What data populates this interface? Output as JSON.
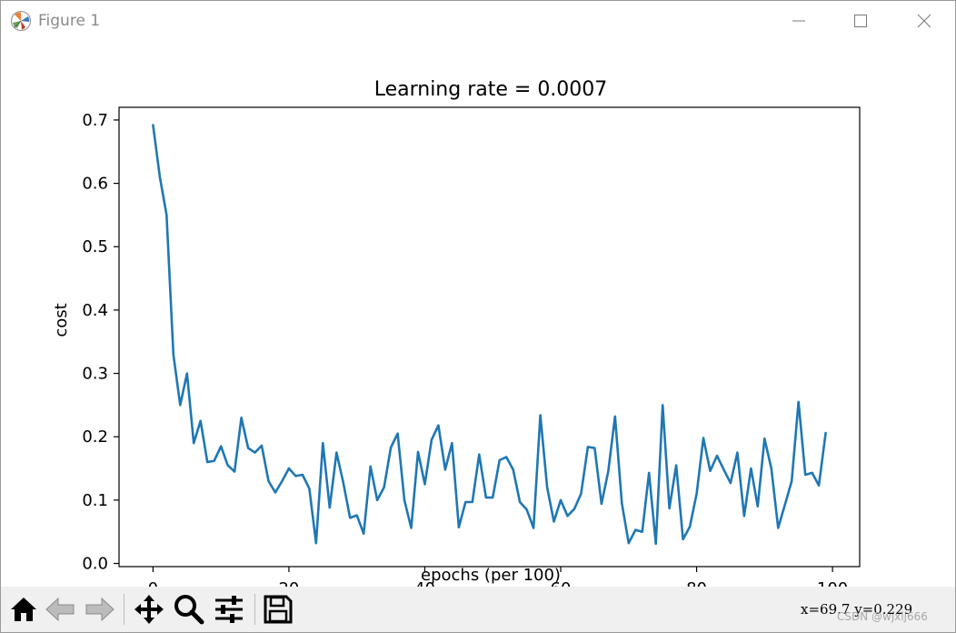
{
  "window": {
    "title": "Figure 1",
    "app_icon": "matplotlib-icon",
    "controls": [
      "minimize-icon",
      "maximize-icon",
      "close-icon"
    ]
  },
  "chart_data": {
    "type": "line",
    "title": "Learning rate = 0.0007",
    "xlabel": "epochs (per 100)",
    "ylabel": "cost",
    "xlim": [
      -5,
      104
    ],
    "ylim": [
      -0.005,
      0.72
    ],
    "xticks": [
      0,
      20,
      40,
      60,
      80,
      100
    ],
    "xtick_labels": [
      "0",
      "20",
      "40",
      "60",
      "80",
      "100"
    ],
    "yticks": [
      0.0,
      0.1,
      0.2,
      0.3,
      0.4,
      0.5,
      0.6,
      0.7
    ],
    "ytick_labels": [
      "0.0",
      "0.1",
      "0.2",
      "0.3",
      "0.4",
      "0.5",
      "0.6",
      "0.7"
    ],
    "grid": false,
    "line_color": "#1f77b4",
    "series": [
      {
        "x": [
          0,
          1,
          2,
          3,
          4,
          5,
          6,
          7,
          8,
          9,
          10,
          11,
          12,
          13,
          14,
          15,
          16,
          17,
          18,
          19,
          20,
          21,
          22,
          23,
          24,
          25,
          26,
          27,
          28,
          29,
          30,
          31,
          32,
          33,
          34,
          35,
          36,
          37,
          38,
          39,
          40,
          41,
          42,
          43,
          44,
          45,
          46,
          47,
          48,
          49,
          50,
          51,
          52,
          53,
          54,
          55,
          56,
          57,
          58,
          59,
          60,
          61,
          62,
          63,
          64,
          65,
          66,
          67,
          68,
          69,
          70,
          71,
          72,
          73,
          74,
          75,
          76,
          77,
          78,
          79,
          80,
          81,
          82,
          83,
          84,
          85,
          86,
          87,
          88,
          89,
          90,
          91,
          92,
          93,
          94,
          95,
          96,
          97,
          98,
          99
        ],
        "values": [
          0.692,
          0.61,
          0.55,
          0.33,
          0.25,
          0.3,
          0.19,
          0.225,
          0.16,
          0.162,
          0.185,
          0.155,
          0.145,
          0.23,
          0.182,
          0.175,
          0.186,
          0.13,
          0.112,
          0.13,
          0.15,
          0.138,
          0.14,
          0.118,
          0.032,
          0.19,
          0.088,
          0.175,
          0.128,
          0.072,
          0.076,
          0.047,
          0.153,
          0.1,
          0.12,
          0.183,
          0.205,
          0.1,
          0.056,
          0.176,
          0.125,
          0.195,
          0.218,
          0.148,
          0.19,
          0.057,
          0.097,
          0.097,
          0.172,
          0.104,
          0.104,
          0.163,
          0.168,
          0.148,
          0.097,
          0.085,
          0.056,
          0.234,
          0.12,
          0.066,
          0.1,
          0.075,
          0.086,
          0.11,
          0.184,
          0.182,
          0.094,
          0.145,
          0.232,
          0.095,
          0.032,
          0.053,
          0.05,
          0.143,
          0.031,
          0.25,
          0.087,
          0.155,
          0.038,
          0.058,
          0.11,
          0.198,
          0.146,
          0.17,
          0.148,
          0.127,
          0.175,
          0.075,
          0.15,
          0.09,
          0.197,
          0.15,
          0.056,
          0.093,
          0.13,
          0.255,
          0.14,
          0.143,
          0.123,
          0.206
        ]
      }
    ]
  },
  "toolbar": {
    "buttons": [
      "home-icon",
      "back-icon",
      "forward-icon",
      "pan-icon",
      "zoom-icon",
      "configure-subplots-icon",
      "save-icon"
    ],
    "coords_text": "x=69.7 y=0.229",
    "watermark": "CSDN @wjxlj666"
  }
}
